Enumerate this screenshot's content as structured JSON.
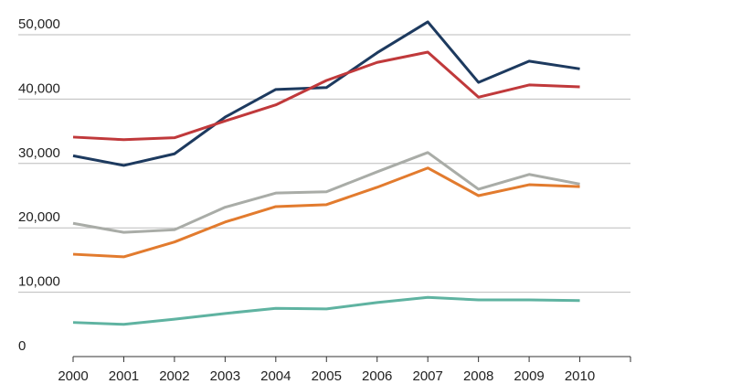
{
  "chart_data": {
    "type": "line",
    "categories": [
      "2000",
      "2001",
      "2002",
      "2003",
      "2004",
      "2005",
      "2006",
      "2007",
      "2008",
      "2009",
      "2010"
    ],
    "series": [
      {
        "color": "#1d3a5f",
        "values": [
          31200,
          29700,
          31500,
          37200,
          41500,
          41800,
          47200,
          52000,
          42600,
          45900,
          44700
        ]
      },
      {
        "color": "#c0393b",
        "values": [
          34100,
          33700,
          34000,
          36600,
          39100,
          42900,
          45700,
          47300,
          40300,
          42200,
          41900
        ]
      },
      {
        "color": "#a9aca7",
        "values": [
          20700,
          19300,
          19700,
          23200,
          25400,
          25600,
          28700,
          31700,
          26000,
          28300,
          26800
        ]
      },
      {
        "color": "#e27b2e",
        "values": [
          15900,
          15500,
          17800,
          20900,
          23300,
          23600,
          26300,
          29300,
          25000,
          26700,
          26400
        ]
      },
      {
        "color": "#5fb3a1",
        "values": [
          5300,
          5000,
          5800,
          6700,
          7500,
          7400,
          8400,
          9200,
          8800,
          8800,
          8700
        ]
      }
    ],
    "ylim": [
      0,
      50000
    ],
    "yticks": [
      0,
      {
        "value": 10000,
        "label": "10,000"
      },
      {
        "value": 20000,
        "label": "20,000"
      },
      {
        "value": 30000,
        "label": "30,000"
      },
      {
        "value": 40000,
        "label": "40,000"
      },
      {
        "value": 50000,
        "label": "50,000"
      }
    ],
    "grid": true
  }
}
